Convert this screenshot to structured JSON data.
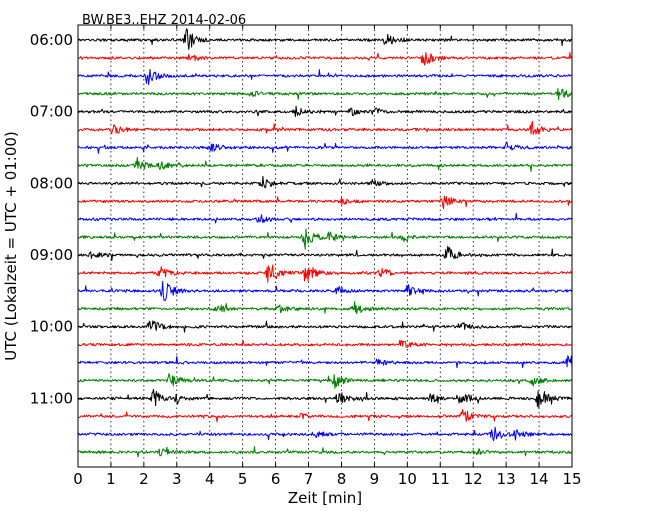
{
  "chart_data": {
    "type": "line",
    "title": "BW.BE3..EHZ 2014-02-06",
    "xlabel": "Zeit  [min]",
    "ylabel": "UTC (Lokalzeit = UTC + 01:00)",
    "xlim": [
      0,
      15
    ],
    "x_ticks": [
      "0",
      "1",
      "2",
      "3",
      "4",
      "5",
      "6",
      "7",
      "8",
      "9",
      "10",
      "11",
      "12",
      "13",
      "14",
      "15"
    ],
    "y_ticks": [
      {
        "row": 0,
        "label": "06:00"
      },
      {
        "row": 4,
        "label": "07:00"
      },
      {
        "row": 8,
        "label": "08:00"
      },
      {
        "row": 12,
        "label": "09:00"
      },
      {
        "row": 16,
        "label": "10:00"
      },
      {
        "row": 20,
        "label": "11:00"
      }
    ],
    "grid": "vertical dotted lines at each minute",
    "row_colors": [
      "#000000",
      "#ff0000",
      "#0000ff",
      "#008000"
    ],
    "series": [
      {
        "start_time": "06:00",
        "events": [
          {
            "t": 3.3,
            "amp": 1.0
          },
          {
            "t": 9.4,
            "amp": 0.6
          }
        ]
      },
      {
        "start_time": "06:15",
        "events": [
          {
            "t": 10.5,
            "amp": 0.9
          },
          {
            "t": 3.4,
            "amp": 0.3
          }
        ]
      },
      {
        "start_time": "06:30",
        "events": [
          {
            "t": 2.1,
            "amp": 0.9
          }
        ]
      },
      {
        "start_time": "06:45",
        "events": [
          {
            "t": 14.6,
            "amp": 0.5
          },
          {
            "t": 5.3,
            "amp": 0.2
          }
        ]
      },
      {
        "start_time": "07:00",
        "events": [
          {
            "t": 6.6,
            "amp": 0.4
          },
          {
            "t": 8.3,
            "amp": 0.3
          },
          {
            "t": 9.0,
            "amp": 0.3
          }
        ]
      },
      {
        "start_time": "07:15",
        "events": [
          {
            "t": 1.1,
            "amp": 0.5
          },
          {
            "t": 13.8,
            "amp": 0.6
          }
        ]
      },
      {
        "start_time": "07:30",
        "events": [
          {
            "t": 4.0,
            "amp": 0.4
          },
          {
            "t": 13.0,
            "amp": 0.4
          }
        ]
      },
      {
        "start_time": "07:45",
        "events": [
          {
            "t": 1.8,
            "amp": 0.6
          },
          {
            "t": 2.5,
            "amp": 0.3
          }
        ]
      },
      {
        "start_time": "08:00",
        "events": [
          {
            "t": 5.6,
            "amp": 0.6
          },
          {
            "t": 8.9,
            "amp": 0.3
          }
        ]
      },
      {
        "start_time": "08:15",
        "events": [
          {
            "t": 11.1,
            "amp": 0.5
          },
          {
            "t": 8.0,
            "amp": 0.2
          }
        ]
      },
      {
        "start_time": "08:30",
        "events": [
          {
            "t": 5.5,
            "amp": 0.4
          }
        ]
      },
      {
        "start_time": "08:45",
        "events": [
          {
            "t": 6.9,
            "amp": 1.0
          },
          {
            "t": 7.6,
            "amp": 0.5
          },
          {
            "t": 9.9,
            "amp": 0.3
          }
        ]
      },
      {
        "start_time": "09:00",
        "events": [
          {
            "t": 11.2,
            "amp": 0.8
          },
          {
            "t": 0.4,
            "amp": 0.3
          }
        ]
      },
      {
        "start_time": "09:15",
        "events": [
          {
            "t": 5.8,
            "amp": 1.0
          },
          {
            "t": 6.9,
            "amp": 1.0
          },
          {
            "t": 2.5,
            "amp": 0.5
          },
          {
            "t": 9.2,
            "amp": 0.4
          }
        ]
      },
      {
        "start_time": "09:30",
        "events": [
          {
            "t": 2.6,
            "amp": 1.0
          },
          {
            "t": 10.0,
            "amp": 0.5
          },
          {
            "t": 7.9,
            "amp": 0.3
          }
        ]
      },
      {
        "start_time": "09:45",
        "events": [
          {
            "t": 4.2,
            "amp": 0.5
          },
          {
            "t": 8.4,
            "amp": 0.5
          },
          {
            "t": 6.1,
            "amp": 0.3
          }
        ]
      },
      {
        "start_time": "10:00",
        "events": [
          {
            "t": 2.2,
            "amp": 0.9
          },
          {
            "t": 11.7,
            "amp": 0.3
          }
        ]
      },
      {
        "start_time": "10:15",
        "events": [
          {
            "t": 9.8,
            "amp": 0.4
          }
        ]
      },
      {
        "start_time": "10:30",
        "events": [
          {
            "t": 14.9,
            "amp": 0.6
          },
          {
            "t": 9.1,
            "amp": 0.3
          }
        ]
      },
      {
        "start_time": "10:45",
        "events": [
          {
            "t": 2.8,
            "amp": 0.7
          },
          {
            "t": 7.8,
            "amp": 0.6
          },
          {
            "t": 13.8,
            "amp": 0.4
          }
        ]
      },
      {
        "start_time": "11:00",
        "events": [
          {
            "t": 2.3,
            "amp": 0.7
          },
          {
            "t": 7.9,
            "amp": 0.7
          },
          {
            "t": 11.6,
            "amp": 0.8
          },
          {
            "t": 14.0,
            "amp": 1.0
          },
          {
            "t": 3.0,
            "amp": 0.4
          },
          {
            "t": 10.7,
            "amp": 0.4
          }
        ]
      },
      {
        "start_time": "11:15",
        "events": [
          {
            "t": 11.7,
            "amp": 0.6
          },
          {
            "t": 6.8,
            "amp": 0.2
          }
        ]
      },
      {
        "start_time": "11:30",
        "events": [
          {
            "t": 12.6,
            "amp": 0.7
          },
          {
            "t": 13.3,
            "amp": 0.5
          },
          {
            "t": 7.2,
            "amp": 0.3
          }
        ]
      },
      {
        "start_time": "11:45",
        "events": [
          {
            "t": 2.5,
            "amp": 0.3
          },
          {
            "t": 12.1,
            "amp": 0.3
          }
        ]
      }
    ]
  }
}
